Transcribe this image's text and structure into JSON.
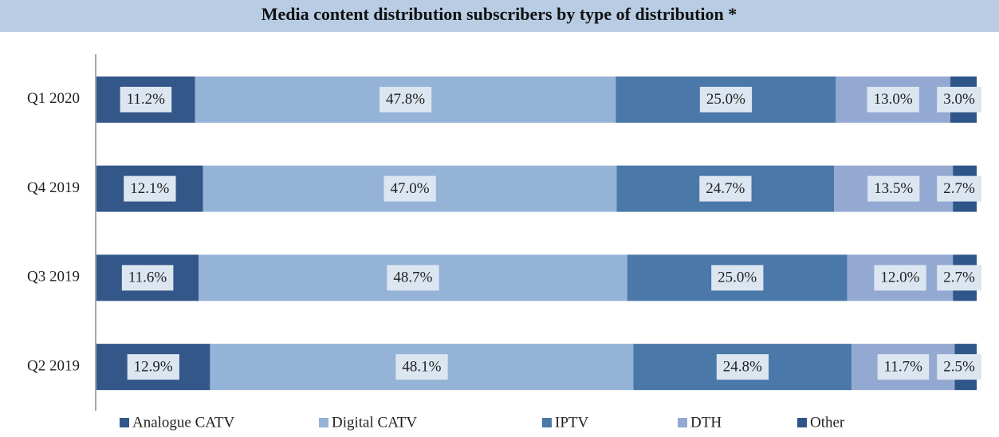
{
  "chart_data": {
    "type": "stacked-bar-horizontal",
    "title": "Media content distribution subscribers by type of distribution *",
    "categories": [
      "Q1 2020",
      "Q4 2019",
      "Q3 2019",
      "Q2 2019"
    ],
    "xlim": [
      0,
      100
    ],
    "series": [
      {
        "name": "Analogue CATV",
        "color": "#34578a",
        "values": [
          11.2,
          12.1,
          11.6,
          12.9
        ],
        "value_labels": [
          "11.2%",
          "12.1%",
          "11.6%",
          "12.9%"
        ]
      },
      {
        "name": "Digital CATV",
        "color": "#95b3d7",
        "values": [
          47.8,
          47.0,
          48.7,
          48.1
        ],
        "value_labels": [
          "47.8%",
          "47.0%",
          "48.7%",
          "48.1%"
        ]
      },
      {
        "name": "IPTV",
        "color": "#4a78a8",
        "values": [
          25.0,
          24.7,
          25.0,
          24.8
        ],
        "value_labels": [
          "25.0%",
          "24.7%",
          "25.0%",
          "24.8%"
        ]
      },
      {
        "name": "DTH",
        "color": "#94a9d2",
        "values": [
          13.0,
          13.5,
          12.0,
          11.7
        ],
        "value_labels": [
          "13.0%",
          "13.5%",
          "12.0%",
          "11.7%"
        ]
      },
      {
        "name": "Other",
        "color": "#2f5689",
        "values": [
          3.0,
          2.7,
          2.7,
          2.5
        ],
        "value_labels": [
          "3.0%",
          "2.7%",
          "2.7%",
          "2.5%"
        ]
      }
    ]
  }
}
